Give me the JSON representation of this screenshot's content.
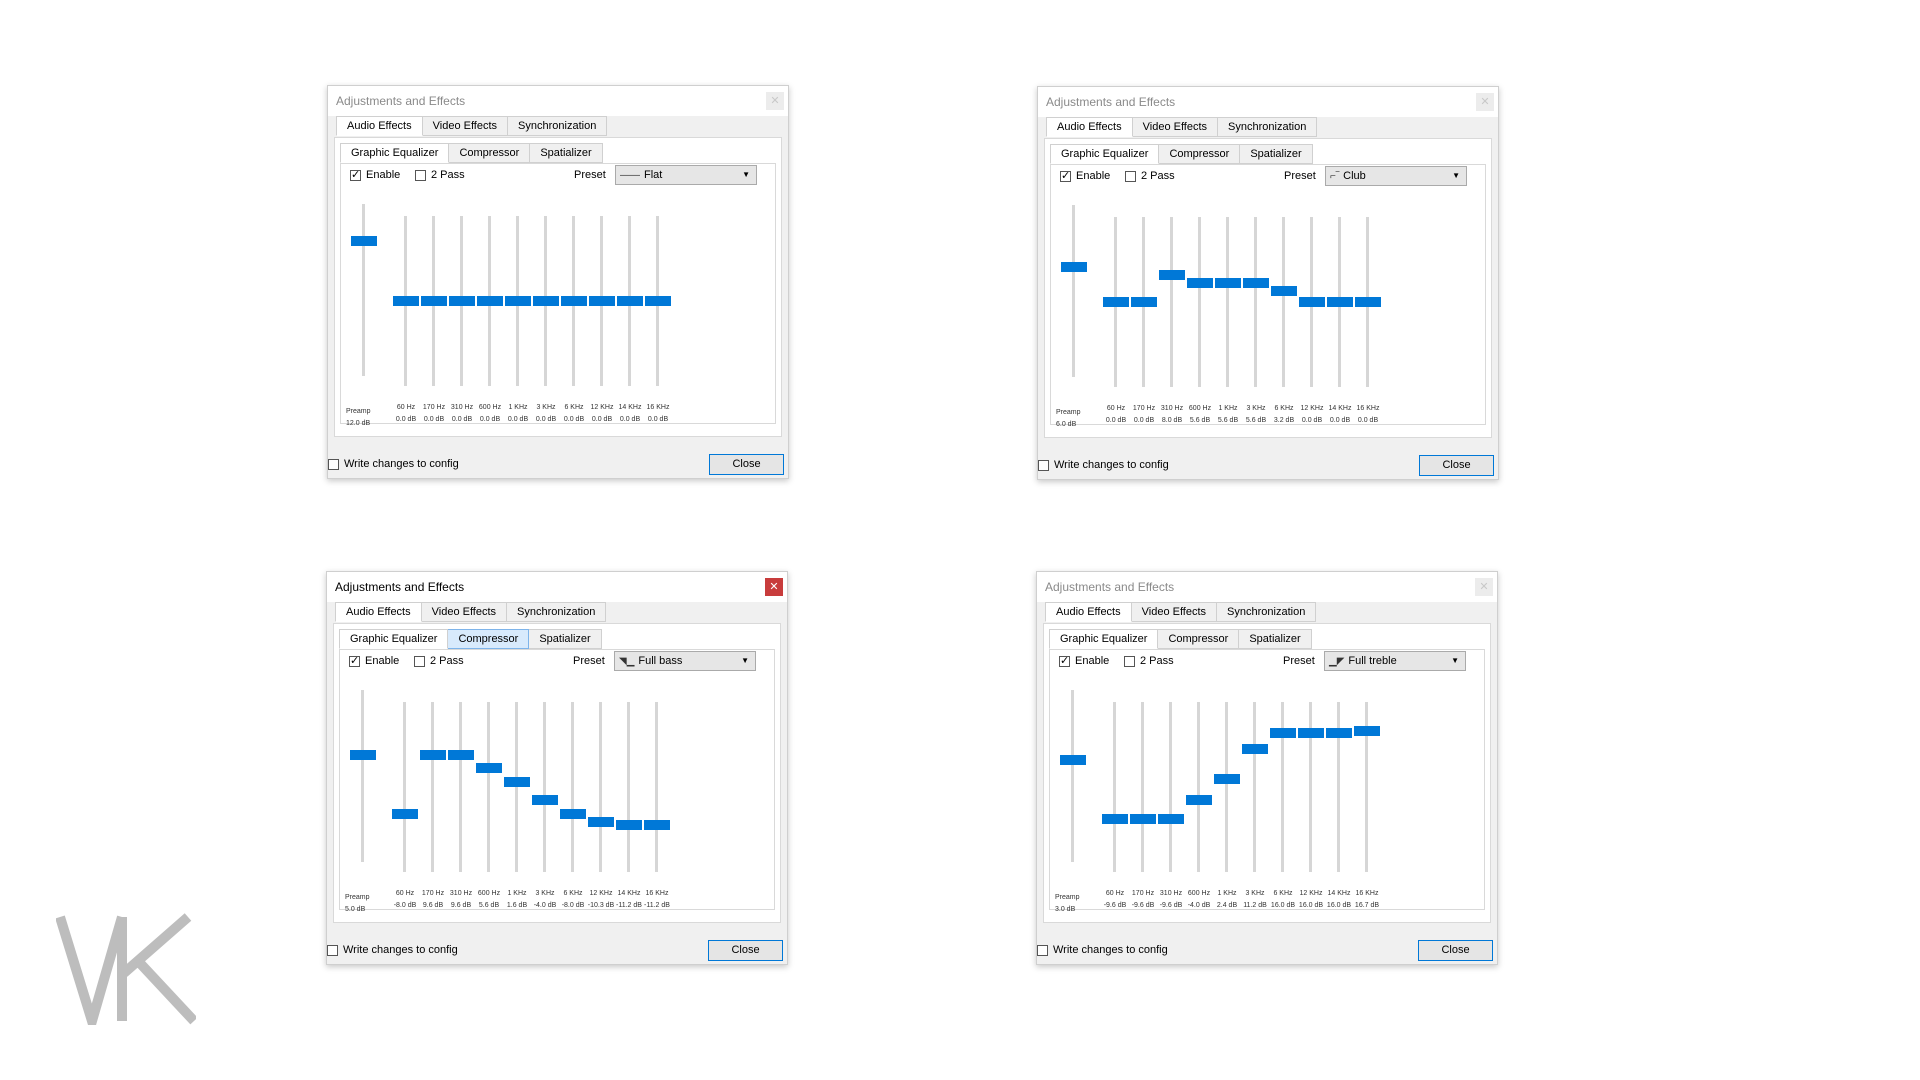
{
  "dialogs": [
    {
      "title": "Adjustments and Effects",
      "active": false,
      "highlight_sub": -1,
      "preset": "Flat",
      "preset_icon": "flat-curve-icon",
      "preamp": {
        "label": "Preamp",
        "value": "12.0 dB",
        "level": 0.8
      },
      "bands": [
        {
          "freq": "60 Hz",
          "value": "0.0 dB",
          "level": 0.5
        },
        {
          "freq": "170 Hz",
          "value": "0.0 dB",
          "level": 0.5
        },
        {
          "freq": "310 Hz",
          "value": "0.0 dB",
          "level": 0.5
        },
        {
          "freq": "600 Hz",
          "value": "0.0 dB",
          "level": 0.5
        },
        {
          "freq": "1 KHz",
          "value": "0.0 dB",
          "level": 0.5
        },
        {
          "freq": "3 KHz",
          "value": "0.0 dB",
          "level": 0.5
        },
        {
          "freq": "6 KHz",
          "value": "0.0 dB",
          "level": 0.5
        },
        {
          "freq": "12 KHz",
          "value": "0.0 dB",
          "level": 0.5
        },
        {
          "freq": "14 KHz",
          "value": "0.0 dB",
          "level": 0.5
        },
        {
          "freq": "16 KHz",
          "value": "0.0 dB",
          "level": 0.5
        }
      ]
    },
    {
      "title": "Adjustments and Effects",
      "active": false,
      "highlight_sub": -1,
      "preset": "Club",
      "preset_icon": "club-curve-icon",
      "preamp": {
        "label": "Preamp",
        "value": "6.0 dB",
        "level": 0.65
      },
      "bands": [
        {
          "freq": "60 Hz",
          "value": "0.0 dB",
          "level": 0.5
        },
        {
          "freq": "170 Hz",
          "value": "0.0 dB",
          "level": 0.5
        },
        {
          "freq": "310 Hz",
          "value": "8.0 dB",
          "level": 0.67
        },
        {
          "freq": "600 Hz",
          "value": "5.6 dB",
          "level": 0.62
        },
        {
          "freq": "1 KHz",
          "value": "5.6 dB",
          "level": 0.62
        },
        {
          "freq": "3 KHz",
          "value": "5.6 dB",
          "level": 0.62
        },
        {
          "freq": "6 KHz",
          "value": "3.2 dB",
          "level": 0.57
        },
        {
          "freq": "12 KHz",
          "value": "0.0 dB",
          "level": 0.5
        },
        {
          "freq": "14 KHz",
          "value": "0.0 dB",
          "level": 0.5
        },
        {
          "freq": "16 KHz",
          "value": "0.0 dB",
          "level": 0.5
        }
      ]
    },
    {
      "title": "Adjustments and Effects",
      "active": true,
      "highlight_sub": 1,
      "preset": "Full bass",
      "preset_icon": "full-bass-curve-icon",
      "preamp": {
        "label": "Preamp",
        "value": "5.0 dB",
        "level": 0.63
      },
      "bands": [
        {
          "freq": "60 Hz",
          "value": "-8.0 dB",
          "level": 0.33
        },
        {
          "freq": "170 Hz",
          "value": "9.6 dB",
          "level": 0.7
        },
        {
          "freq": "310 Hz",
          "value": "9.6 dB",
          "level": 0.7
        },
        {
          "freq": "600 Hz",
          "value": "5.6 dB",
          "level": 0.62
        },
        {
          "freq": "1 KHz",
          "value": "1.6 dB",
          "level": 0.53
        },
        {
          "freq": "3 KHz",
          "value": "-4.0 dB",
          "level": 0.42
        },
        {
          "freq": "6 KHz",
          "value": "-8.0 dB",
          "level": 0.33
        },
        {
          "freq": "12 KHz",
          "value": "-10.3 dB",
          "level": 0.28
        },
        {
          "freq": "14 KHz",
          "value": "-11.2 dB",
          "level": 0.26
        },
        {
          "freq": "16 KHz",
          "value": "-11.2 dB",
          "level": 0.26
        }
      ]
    },
    {
      "title": "Adjustments and Effects",
      "active": false,
      "highlight_sub": -1,
      "preset": "Full treble",
      "preset_icon": "full-treble-curve-icon",
      "preamp": {
        "label": "Preamp",
        "value": "3.0 dB",
        "level": 0.6
      },
      "bands": [
        {
          "freq": "60 Hz",
          "value": "-9.6 dB",
          "level": 0.3
        },
        {
          "freq": "170 Hz",
          "value": "-9.6 dB",
          "level": 0.3
        },
        {
          "freq": "310 Hz",
          "value": "-9.6 dB",
          "level": 0.3
        },
        {
          "freq": "600 Hz",
          "value": "-4.0 dB",
          "level": 0.42
        },
        {
          "freq": "1 KHz",
          "value": "2.4 dB",
          "level": 0.55
        },
        {
          "freq": "3 KHz",
          "value": "11.2 dB",
          "level": 0.74
        },
        {
          "freq": "6 KHz",
          "value": "16.0 dB",
          "level": 0.84
        },
        {
          "freq": "12 KHz",
          "value": "16.0 dB",
          "level": 0.84
        },
        {
          "freq": "14 KHz",
          "value": "16.0 dB",
          "level": 0.84
        },
        {
          "freq": "16 KHz",
          "value": "16.7 dB",
          "level": 0.85
        }
      ]
    }
  ],
  "common": {
    "tabs": [
      "Audio Effects",
      "Video Effects",
      "Synchronization"
    ],
    "subtabs": [
      "Graphic Equalizer",
      "Compressor",
      "Spatializer"
    ],
    "enable_label": "Enable",
    "enable_checked": true,
    "twopass_label": "2 Pass",
    "twopass_checked": false,
    "preset_label": "Preset",
    "write_config_label": "Write changes to config",
    "write_config_checked": false,
    "close_label": "Close",
    "close_icon": "close-x-icon"
  },
  "logo": {
    "text": "VK",
    "color": "#bdbdbd"
  }
}
